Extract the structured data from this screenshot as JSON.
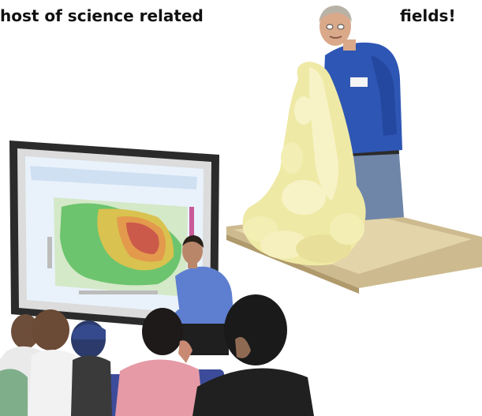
{
  "heading": {
    "left_text": "host of science related",
    "right_text": "fields!"
  },
  "images": {
    "demonstration_photo": "scientist pouring foaming liquid onto a tray",
    "classroom_photo": "presenter seated in front of a projection screen showing a colored map, with students in the foreground"
  },
  "colors": {
    "background": "#ffffff",
    "heading_text": "#111111",
    "foam": "#efe9a6",
    "tray": "#cdbb8f",
    "shirt_blue": "#2e56b4",
    "screen_map_green": "#6cc46e",
    "screen_map_red": "#cc5a4a",
    "screen_bezel": "#2b2b2b"
  }
}
